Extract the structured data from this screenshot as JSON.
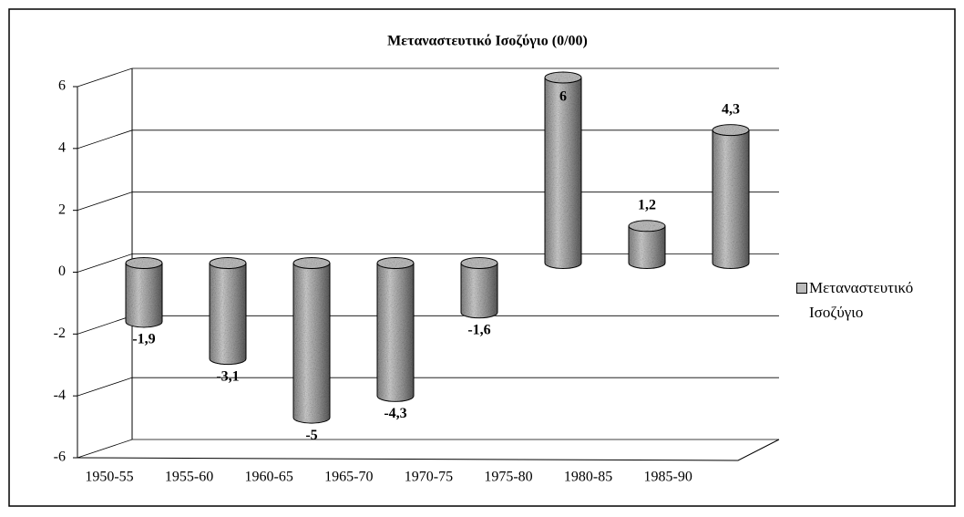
{
  "chart_data": {
    "type": "bar3d",
    "title": "Μεταναστευτικό Ισοζύγιο (0/00)",
    "categories": [
      "1950-55",
      "1955-60",
      "1960-65",
      "1965-70",
      "1970-75",
      "1975-80",
      "1980-85",
      "1985-90"
    ],
    "series": [
      {
        "name": "Μεταναστευτικό Ισοζύγιο",
        "color": "#9a9a9a",
        "values": [
          -1.9,
          -3.1,
          -5,
          -4.3,
          -1.6,
          6,
          1.2,
          4.3
        ],
        "value_labels": [
          "-1,9",
          "-3,1",
          "-5",
          "-4,3",
          "-1,6",
          "6",
          "1,2",
          "4,3"
        ]
      }
    ],
    "ylim": [
      -6,
      6
    ],
    "yticks": [
      -6,
      -4,
      -2,
      0,
      2,
      4,
      6
    ],
    "grid": true,
    "legend": "right"
  }
}
